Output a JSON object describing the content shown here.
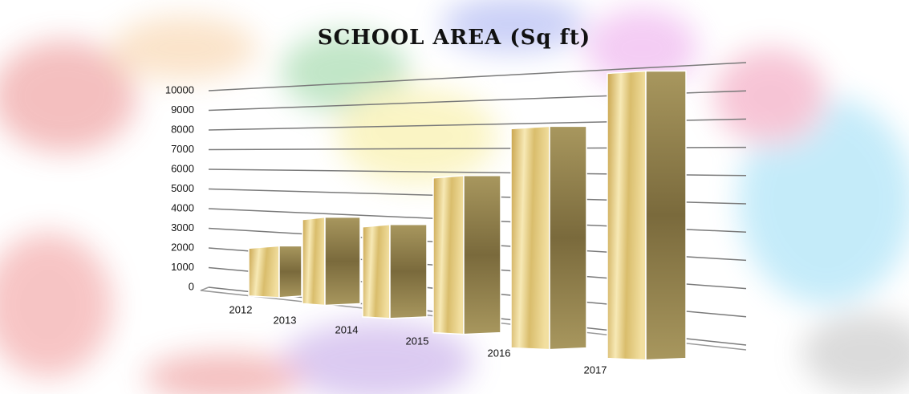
{
  "chart_data": {
    "type": "bar3d",
    "title": "SCHOOL AREA (Sq ft)",
    "categories": [
      "2012",
      "2013",
      "2014",
      "2015",
      "2016",
      "2017"
    ],
    "values": [
      2500,
      4000,
      3800,
      6000,
      8000,
      10000
    ],
    "ylim": [
      0,
      10000
    ],
    "yticks": [
      0,
      1000,
      2000,
      3000,
      4000,
      5000,
      6000,
      7000,
      8000,
      9000,
      10000
    ],
    "grid": true
  }
}
